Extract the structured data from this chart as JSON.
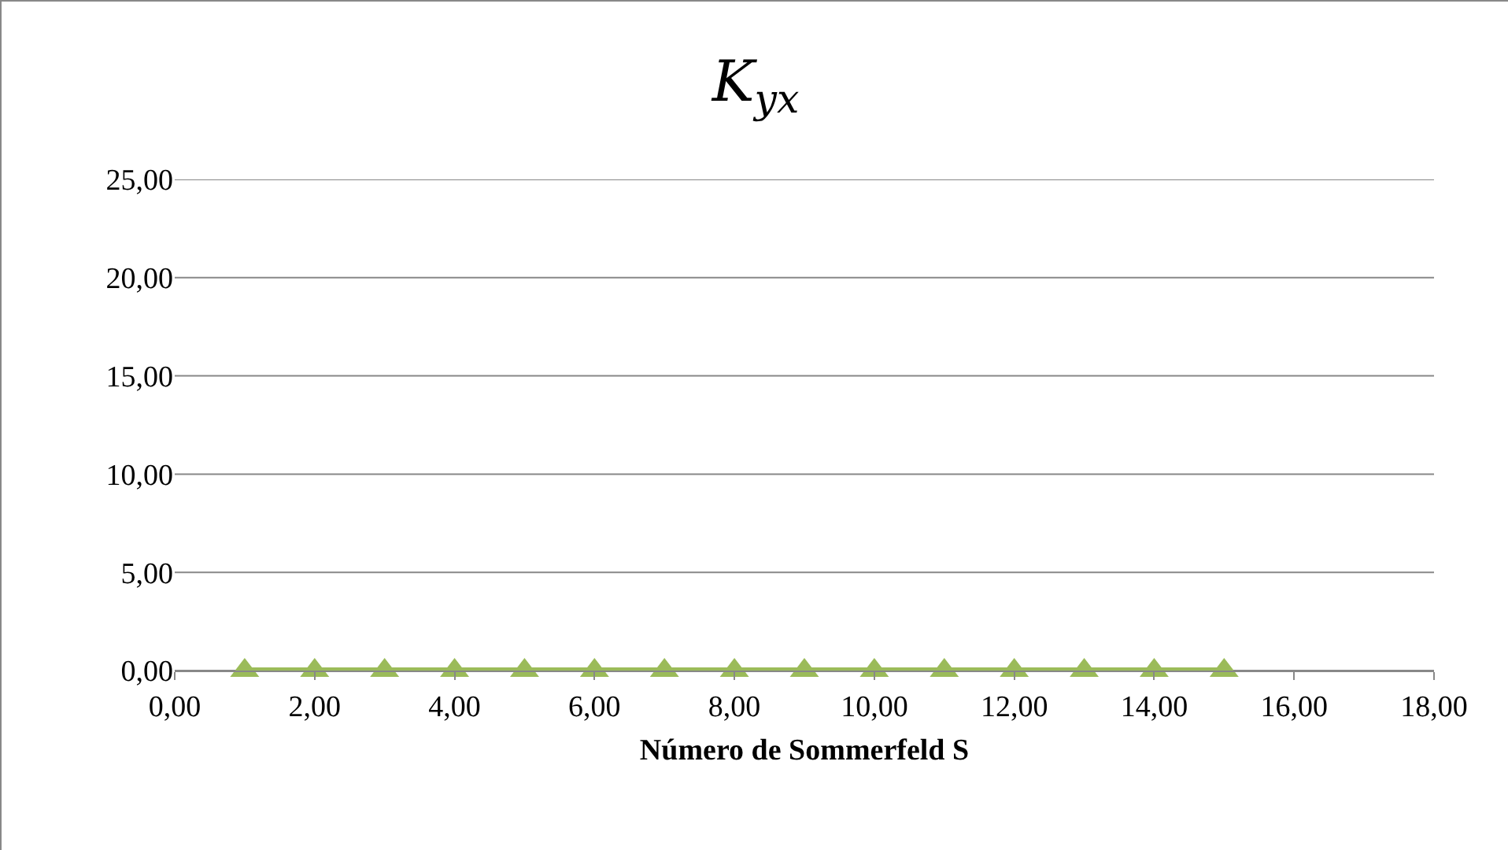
{
  "chart_data": {
    "type": "line",
    "title": "K$_{yx}$",
    "xlabel": "Número de Sommerfeld S",
    "x": [
      1,
      2,
      3,
      4,
      5,
      6,
      7,
      8,
      9,
      10,
      11,
      12,
      13,
      14,
      15
    ],
    "series": [
      {
        "color": "#9bbb59",
        "values": [
          0,
          0,
          0,
          0,
          0,
          0,
          0,
          0,
          0,
          0,
          0,
          0,
          0,
          0,
          0
        ]
      }
    ],
    "xlim": [
      0,
      18
    ],
    "xticks": [
      {
        "value": 0,
        "label": "0,00"
      },
      {
        "value": 2,
        "label": "2,00"
      },
      {
        "value": 4,
        "label": "4,00"
      },
      {
        "value": 6,
        "label": "6,00"
      },
      {
        "value": 8,
        "label": "8,00"
      },
      {
        "value": 10,
        "label": "10,00"
      },
      {
        "value": 12,
        "label": "12,00"
      },
      {
        "value": 14,
        "label": "14,00"
      },
      {
        "value": 16,
        "label": "16,00"
      },
      {
        "value": 18,
        "label": "18,00"
      }
    ],
    "ylim": [
      0,
      25
    ],
    "yticks": [
      {
        "value": 0,
        "label": "0,00"
      },
      {
        "value": 5,
        "label": "5,00"
      },
      {
        "value": 10,
        "label": "10,00"
      },
      {
        "value": 15,
        "label": "15,00"
      },
      {
        "value": 20,
        "label": "20,00"
      },
      {
        "value": 25,
        "label": "25,00"
      }
    ],
    "grid": "y",
    "marker": "triangle",
    "line_style": "solid"
  }
}
